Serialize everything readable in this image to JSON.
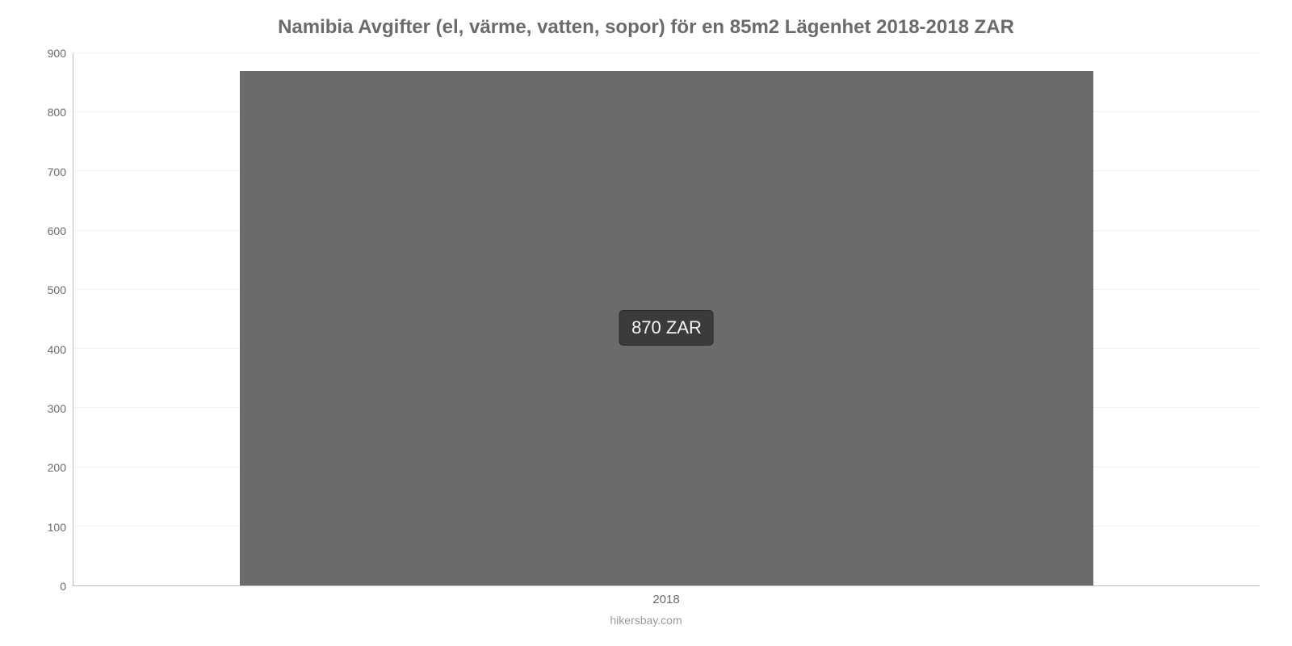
{
  "chart": {
    "type": "bar",
    "title": "Namibia Avgifter (el, värme, vatten, sopor) för en 85m2 Lägenhet 2018-2018 ZAR",
    "title_fontsize": 24,
    "title_color": "#6b6b6b",
    "caption": "hikersbay.com",
    "caption_color": "#9a9a9a",
    "background_color": "#ffffff",
    "axis_line_color": "#bdbdbd",
    "grid_color": "#f2f2f2",
    "tick_label_color": "#6b6b6b",
    "tick_label_fontsize": 14,
    "y": {
      "min": 0,
      "max": 900,
      "ticks": [
        0,
        100,
        200,
        300,
        400,
        500,
        600,
        700,
        800,
        900
      ]
    },
    "x": {
      "categories": [
        "2018"
      ]
    },
    "bars": [
      {
        "category": "2018",
        "value": 870,
        "color": "#6b6b6b",
        "width_fraction": 0.72,
        "tooltip": "870 ZAR"
      }
    ],
    "tooltip_style": {
      "background": "#3b3b3b",
      "text_color": "#f5f5f5",
      "border_color": "#2a2a2a",
      "fontsize": 22
    }
  }
}
